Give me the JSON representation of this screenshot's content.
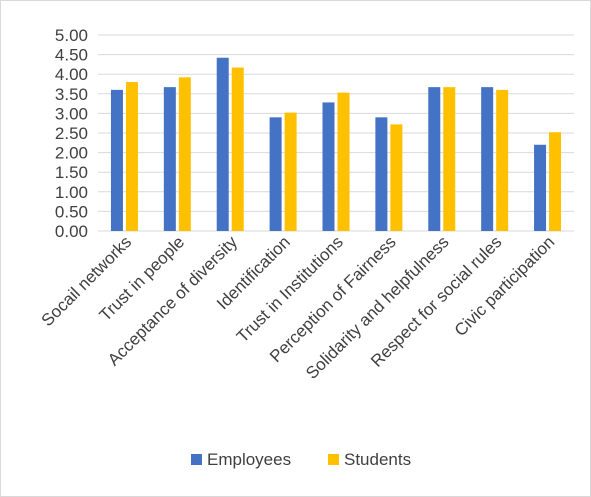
{
  "chart_data": {
    "type": "bar",
    "title": "",
    "xlabel": "",
    "ylabel": "",
    "ylim": [
      0,
      5
    ],
    "yticks": [
      "0.00",
      "0.50",
      "1.00",
      "1.50",
      "2.00",
      "2.50",
      "3.00",
      "3.50",
      "4.00",
      "4.50",
      "5.00"
    ],
    "grid": true,
    "legend": "bottom",
    "categories": [
      "Socail networks",
      "Trust in people",
      "Acceptance of diversity",
      "Identification",
      "Trust in Institutions",
      "Perception of Fairness",
      "Solidarity and helpfulness",
      "Respect for social rules",
      "Civic participation"
    ],
    "series": [
      {
        "name": "Employees",
        "color": "#4472c4",
        "values": [
          3.6,
          3.67,
          4.42,
          2.9,
          3.28,
          2.9,
          3.67,
          3.67,
          2.2
        ]
      },
      {
        "name": "Students",
        "color": "#ffc000",
        "values": [
          3.8,
          3.92,
          4.17,
          3.02,
          3.53,
          2.72,
          3.67,
          3.6,
          2.52
        ]
      }
    ]
  }
}
